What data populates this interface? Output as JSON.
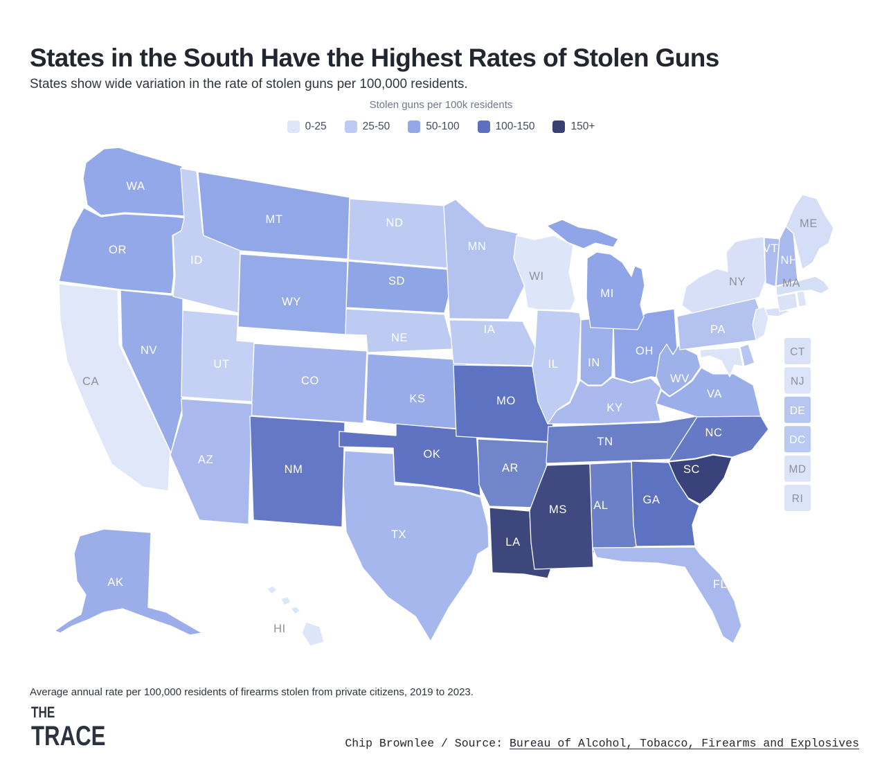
{
  "header": {
    "title": "States in the South Have the Highest Rates of Stolen Guns",
    "subtitle": "States show wide variation in the rate of stolen guns per 100,000 residents."
  },
  "legend": {
    "title": "Stolen guns per 100k residents",
    "buckets": [
      {
        "label": "0-25",
        "color": "#dee7f9"
      },
      {
        "label": "25-50",
        "color": "#bccbf3"
      },
      {
        "label": "50-100",
        "color": "#93a8e9"
      },
      {
        "label": "100-150",
        "color": "#5b70c0"
      },
      {
        "label": "150+",
        "color": "#384173"
      }
    ]
  },
  "map": {
    "label_colors": {
      "white": "#ffffff",
      "gray": "#8b919e"
    },
    "insets": [
      "CT",
      "NJ",
      "DE",
      "DC",
      "MD",
      "RI"
    ],
    "states": [
      {
        "abbr": "WA",
        "name": "Washington",
        "color": "#93a8e8",
        "label": "white",
        "bucket": "50-100"
      },
      {
        "abbr": "OR",
        "name": "Oregon",
        "color": "#93a8e8",
        "label": "white",
        "bucket": "50-100"
      },
      {
        "abbr": "CA",
        "name": "California",
        "color": "#dfe7f9",
        "label": "gray",
        "bucket": "0-25"
      },
      {
        "abbr": "NV",
        "name": "Nevada",
        "color": "#97abe9",
        "label": "white",
        "bucket": "50-100"
      },
      {
        "abbr": "ID",
        "name": "Idaho",
        "color": "#c3d0f4",
        "label": "white",
        "bucket": "25-50"
      },
      {
        "abbr": "MT",
        "name": "Montana",
        "color": "#91a7e7",
        "label": "white",
        "bucket": "50-100"
      },
      {
        "abbr": "WY",
        "name": "Wyoming",
        "color": "#95aae8",
        "label": "white",
        "bucket": "50-100"
      },
      {
        "abbr": "UT",
        "name": "Utah",
        "color": "#c5d1f4",
        "label": "white",
        "bucket": "25-50"
      },
      {
        "abbr": "CO",
        "name": "Colorado",
        "color": "#a3b5ec",
        "label": "white",
        "bucket": "50-100"
      },
      {
        "abbr": "AZ",
        "name": "Arizona",
        "color": "#a9b9ee",
        "label": "white",
        "bucket": "50-100"
      },
      {
        "abbr": "NM",
        "name": "New Mexico",
        "color": "#6478c5",
        "label": "white",
        "bucket": "100-150"
      },
      {
        "abbr": "ND",
        "name": "North Dakota",
        "color": "#bdcbf2",
        "label": "white",
        "bucket": "25-50"
      },
      {
        "abbr": "SD",
        "name": "South Dakota",
        "color": "#8ea5e6",
        "label": "white",
        "bucket": "50-100"
      },
      {
        "abbr": "NE",
        "name": "Nebraska",
        "color": "#bdcbf2",
        "label": "white",
        "bucket": "25-50"
      },
      {
        "abbr": "KS",
        "name": "Kansas",
        "color": "#97ace8",
        "label": "white",
        "bucket": "50-100"
      },
      {
        "abbr": "OK",
        "name": "Oklahoma",
        "color": "#5f73c2",
        "label": "white",
        "bucket": "100-150"
      },
      {
        "abbr": "TX",
        "name": "Texas",
        "color": "#a6b7ed",
        "label": "white",
        "bucket": "50-100"
      },
      {
        "abbr": "MN",
        "name": "Minnesota",
        "color": "#b3c2ef",
        "label": "white",
        "bucket": "25-50"
      },
      {
        "abbr": "IA",
        "name": "Iowa",
        "color": "#bdcbf2",
        "label": "white",
        "bucket": "25-50"
      },
      {
        "abbr": "MO",
        "name": "Missouri",
        "color": "#5d72c1",
        "label": "white",
        "bucket": "100-150"
      },
      {
        "abbr": "AR",
        "name": "Arkansas",
        "color": "#7185cb",
        "label": "white",
        "bucket": "100-150"
      },
      {
        "abbr": "LA",
        "name": "Louisiana",
        "color": "#3e477c",
        "label": "white",
        "bucket": "150+"
      },
      {
        "abbr": "WI",
        "name": "Wisconsin",
        "color": "#dde6f8",
        "label": "gray",
        "bucket": "0-25"
      },
      {
        "abbr": "IL",
        "name": "Illinois",
        "color": "#bfcdf4",
        "label": "white",
        "bucket": "25-50"
      },
      {
        "abbr": "IN",
        "name": "Indiana",
        "color": "#9db0ea",
        "label": "white",
        "bucket": "50-100"
      },
      {
        "abbr": "MI",
        "name": "Michigan",
        "color": "#8fa5e7",
        "label": "white",
        "bucket": "50-100"
      },
      {
        "abbr": "OH",
        "name": "Ohio",
        "color": "#8ea4e6",
        "label": "white",
        "bucket": "50-100"
      },
      {
        "abbr": "KY",
        "name": "Kentucky",
        "color": "#abbaee",
        "label": "white",
        "bucket": "25-50"
      },
      {
        "abbr": "TN",
        "name": "Tennessee",
        "color": "#6b7fc6",
        "label": "white",
        "bucket": "100-150"
      },
      {
        "abbr": "MS",
        "name": "Mississippi",
        "color": "#414a80",
        "label": "white",
        "bucket": "150+"
      },
      {
        "abbr": "AL",
        "name": "Alabama",
        "color": "#6c80c8",
        "label": "white",
        "bucket": "100-150"
      },
      {
        "abbr": "GA",
        "name": "Georgia",
        "color": "#5d72c1",
        "label": "white",
        "bucket": "100-150"
      },
      {
        "abbr": "FL",
        "name": "Florida",
        "color": "#a9b9ee",
        "label": "white",
        "bucket": "50-100"
      },
      {
        "abbr": "SC",
        "name": "South Carolina",
        "color": "#39427a",
        "label": "white",
        "bucket": "150+"
      },
      {
        "abbr": "NC",
        "name": "North Carolina",
        "color": "#6579c5",
        "label": "white",
        "bucket": "100-150"
      },
      {
        "abbr": "VA",
        "name": "Virginia",
        "color": "#9aaee9",
        "label": "white",
        "bucket": "50-100"
      },
      {
        "abbr": "WV",
        "name": "West Virginia",
        "color": "#9fb1e9",
        "label": "white",
        "bucket": "50-100"
      },
      {
        "abbr": "PA",
        "name": "Pennsylvania",
        "color": "#b3c2ef",
        "label": "white",
        "bucket": "25-50"
      },
      {
        "abbr": "NY",
        "name": "New York",
        "color": "#d7e0f7",
        "label": "gray",
        "bucket": "0-25"
      },
      {
        "abbr": "NJ",
        "name": "New Jersey",
        "color": "#dbe4f8",
        "label": "gray",
        "bucket": "0-25"
      },
      {
        "abbr": "DE",
        "name": "Delaware",
        "color": "#b7c6f1",
        "label": "white",
        "bucket": "25-50"
      },
      {
        "abbr": "DC",
        "name": "District of Columbia",
        "color": "#bac9f2",
        "label": "white",
        "bucket": "25-50"
      },
      {
        "abbr": "MD",
        "name": "Maryland",
        "color": "#dce5f8",
        "label": "gray",
        "bucket": "0-25"
      },
      {
        "abbr": "CT",
        "name": "Connecticut",
        "color": "#d9e2f7",
        "label": "gray",
        "bucket": "0-25"
      },
      {
        "abbr": "RI",
        "name": "Rhode Island",
        "color": "#dce5f8",
        "label": "gray",
        "bucket": "0-25"
      },
      {
        "abbr": "MA",
        "name": "Massachusetts",
        "color": "#d5dff6",
        "label": "gray",
        "bucket": "0-25"
      },
      {
        "abbr": "VT",
        "name": "Vermont",
        "color": "#adbcee",
        "label": "white",
        "bucket": "25-50"
      },
      {
        "abbr": "NH",
        "name": "New Hampshire",
        "color": "#a9b9ed",
        "label": "white",
        "bucket": "50-100"
      },
      {
        "abbr": "ME",
        "name": "Maine",
        "color": "#d4def6",
        "label": "gray",
        "bucket": "0-25"
      },
      {
        "abbr": "AK",
        "name": "Alaska",
        "color": "#9caeea",
        "label": "white",
        "bucket": "50-100"
      },
      {
        "abbr": "HI",
        "name": "Hawaii",
        "color": "#dce6f8",
        "label": "gray",
        "bucket": "0-25"
      }
    ]
  },
  "footer": {
    "note": "Average annual rate per 100,000 residents of firearms stolen from private citizens, 2019 to 2023.",
    "logo_line1": "THE",
    "logo_line2": "TRACE",
    "credit_prefix": "Chip Brownlee / Source: ",
    "credit_link": "Bureau of Alcohol, Tobacco, Firearms and Explosives"
  },
  "chart_data": {
    "type": "choropleth-map",
    "title": "States in the South Have the Highest Rates of Stolen Guns",
    "subtitle": "States show wide variation in the rate of stolen guns per 100,000 residents.",
    "unit": "Stolen guns per 100k residents",
    "legend_position": "top-center",
    "legend_buckets": [
      "0-25",
      "25-50",
      "50-100",
      "100-150",
      "150+"
    ],
    "note": "Average annual rate per 100,000 residents of firearms stolen from private citizens, 2019 to 2023. Values are bucket estimates read from each state's fill color on a continuous blue ramp.",
    "values_by_state_bucket": {
      "WA": "50-100",
      "OR": "50-100",
      "CA": "0-25",
      "NV": "50-100",
      "ID": "25-50",
      "MT": "50-100",
      "WY": "50-100",
      "UT": "25-50",
      "CO": "50-100",
      "AZ": "50-100",
      "NM": "100-150",
      "ND": "25-50",
      "SD": "50-100",
      "NE": "25-50",
      "KS": "50-100",
      "OK": "100-150",
      "TX": "50-100",
      "MN": "25-50",
      "IA": "25-50",
      "MO": "100-150",
      "AR": "100-150",
      "LA": "150+",
      "WI": "0-25",
      "IL": "25-50",
      "IN": "50-100",
      "MI": "50-100",
      "OH": "50-100",
      "KY": "25-50",
      "TN": "100-150",
      "MS": "150+",
      "AL": "100-150",
      "GA": "100-150",
      "FL": "50-100",
      "SC": "150+",
      "NC": "100-150",
      "VA": "50-100",
      "WV": "50-100",
      "PA": "25-50",
      "NY": "0-25",
      "NJ": "0-25",
      "DE": "25-50",
      "DC": "25-50",
      "MD": "0-25",
      "CT": "0-25",
      "RI": "0-25",
      "MA": "0-25",
      "VT": "25-50",
      "NH": "50-100",
      "ME": "0-25",
      "AK": "50-100",
      "HI": "0-25"
    }
  }
}
